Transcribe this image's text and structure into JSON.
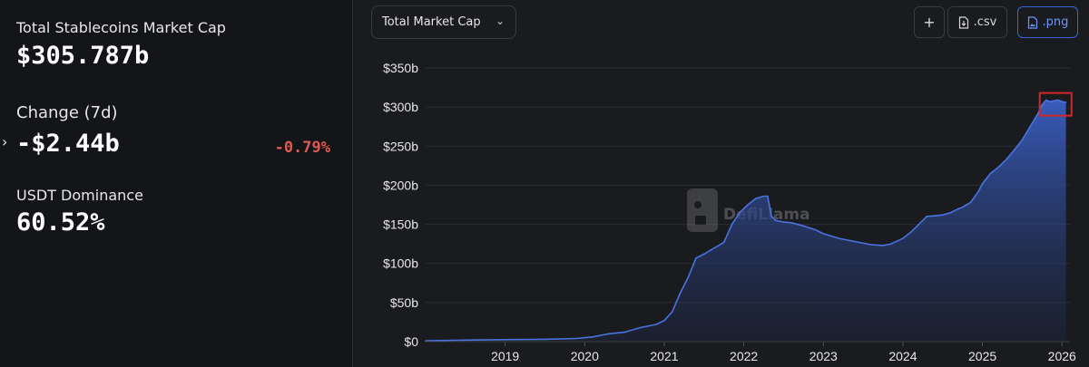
{
  "sidebar": {
    "market_cap_label": "Total Stablecoins Market Cap",
    "market_cap_value": "$305.787b",
    "change_label": "Change (7d)",
    "change_value": "-$2.44b",
    "change_pct": "-0.79%",
    "dominance_label": "USDT Dominance",
    "dominance_value": "60.52%",
    "expand_icon": "chevron-right-icon"
  },
  "toolbar": {
    "metric_selected": "Total Market Cap",
    "add_label": "+",
    "csv_label": ".csv",
    "png_label": ".png"
  },
  "colors": {
    "negative": "#e05b4f",
    "line": "#4a73e0",
    "accent": "#3b63d4",
    "highlight_box": "#d02828"
  },
  "watermark": "DefiLlama",
  "chart_data": {
    "type": "area",
    "x_ticks": [
      "2019",
      "2020",
      "2021",
      "2022",
      "2023",
      "2024",
      "2025",
      "2026"
    ],
    "y_ticks": [
      "$0",
      "$50b",
      "$100b",
      "$150b",
      "$200b",
      "$250b",
      "$300b",
      "$350b"
    ],
    "ylim": [
      0,
      350
    ],
    "grid": true,
    "series": [
      {
        "x": [
          2018.0,
          2018.5,
          2019.0,
          2019.5,
          2019.9,
          2020.1,
          2020.3,
          2020.5,
          2020.7,
          2020.9,
          2021.0,
          2021.1,
          2021.2,
          2021.3,
          2021.4,
          2021.5,
          2021.6,
          2021.75,
          2021.85,
          2021.95,
          2022.05,
          2022.15,
          2022.25,
          2022.3,
          2022.33,
          2022.35,
          2022.4,
          2022.5,
          2022.6,
          2022.75,
          2022.9,
          2023.0,
          2023.2,
          2023.4,
          2023.6,
          2023.75,
          2023.85,
          2024.0,
          2024.1,
          2024.2,
          2024.3,
          2024.4,
          2024.5,
          2024.6,
          2024.7,
          2024.75,
          2024.85,
          2024.95,
          2025.0,
          2025.1,
          2025.2,
          2025.3,
          2025.4,
          2025.5,
          2025.6,
          2025.7,
          2025.75,
          2025.8,
          2025.85,
          2025.9,
          2025.95,
          2026.0,
          2026.05
        ],
        "y": [
          1,
          2,
          2.5,
          3,
          4,
          6,
          10,
          12,
          18,
          22,
          27,
          38,
          62,
          82,
          107,
          112,
          118,
          127,
          150,
          165,
          175,
          183,
          186,
          186,
          170,
          160,
          155,
          153,
          152,
          148,
          143,
          138,
          132,
          128,
          124,
          123,
          125,
          132,
          140,
          150,
          160,
          161,
          162,
          165,
          170,
          172,
          178,
          192,
          202,
          215,
          223,
          233,
          245,
          258,
          275,
          292,
          303,
          309,
          307,
          308,
          309,
          307,
          306
        ]
      }
    ]
  }
}
